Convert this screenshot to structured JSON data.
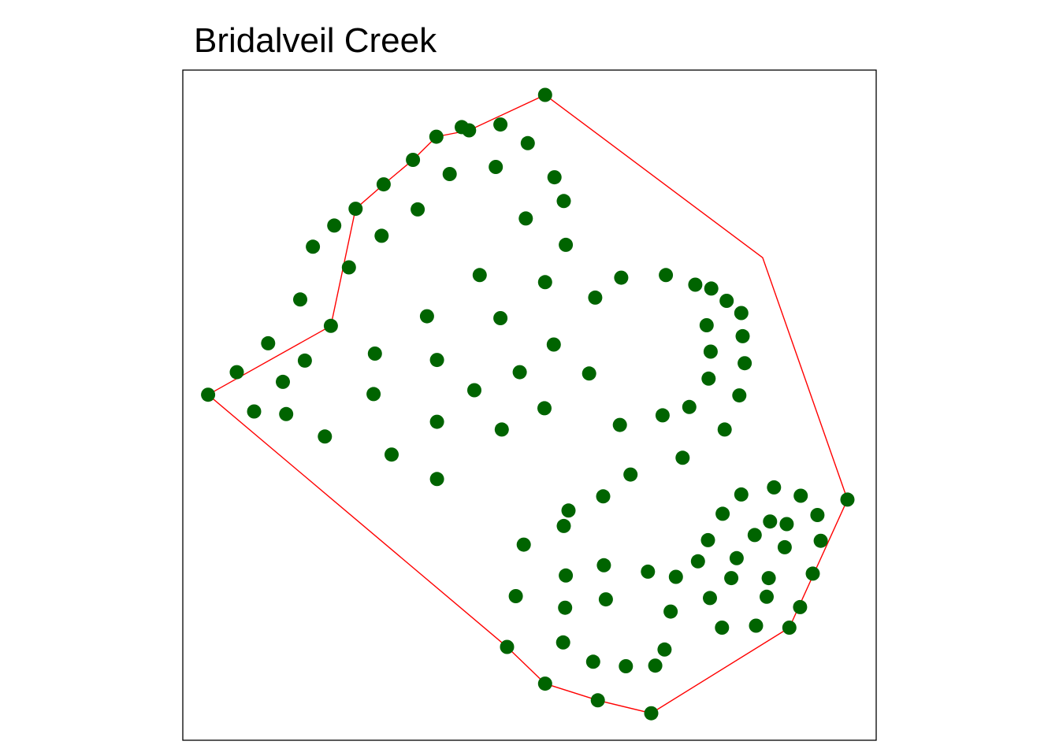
{
  "chart_data": {
    "type": "scatter",
    "title": "Bridalveil Creek",
    "xlabel": "",
    "ylabel": "",
    "xlim": [
      0,
      100
    ],
    "ylim": [
      0,
      100
    ],
    "grid": false,
    "axes_visible": false,
    "colors": {
      "points": "#006400",
      "hull": "#ff0000",
      "frame": "#000000"
    },
    "points": [
      [
        52.4,
        98.1
      ],
      [
        39.9,
        93.1
      ],
      [
        45.7,
        93.5
      ],
      [
        41.0,
        92.6
      ],
      [
        36.1,
        91.6
      ],
      [
        49.8,
        90.6
      ],
      [
        32.6,
        88.0
      ],
      [
        45.0,
        86.9
      ],
      [
        38.1,
        85.8
      ],
      [
        53.8,
        85.3
      ],
      [
        28.2,
        84.2
      ],
      [
        55.2,
        81.6
      ],
      [
        24.0,
        80.4
      ],
      [
        33.3,
        80.3
      ],
      [
        49.5,
        78.9
      ],
      [
        20.8,
        77.8
      ],
      [
        27.9,
        76.2
      ],
      [
        55.5,
        74.8
      ],
      [
        17.6,
        74.5
      ],
      [
        23.0,
        71.3
      ],
      [
        42.6,
        70.1
      ],
      [
        70.5,
        70.1
      ],
      [
        52.4,
        69.0
      ],
      [
        63.8,
        69.7
      ],
      [
        74.9,
        68.6
      ],
      [
        77.3,
        68.0
      ],
      [
        59.9,
        66.6
      ],
      [
        15.7,
        66.3
      ],
      [
        79.6,
        66.1
      ],
      [
        81.8,
        64.2
      ],
      [
        34.7,
        63.7
      ],
      [
        45.7,
        63.4
      ],
      [
        20.3,
        62.2
      ],
      [
        76.6,
        62.3
      ],
      [
        82.0,
        60.6
      ],
      [
        10.9,
        59.5
      ],
      [
        53.7,
        59.3
      ],
      [
        26.9,
        57.9
      ],
      [
        77.2,
        58.2
      ],
      [
        16.4,
        56.8
      ],
      [
        36.2,
        56.9
      ],
      [
        82.3,
        56.4
      ],
      [
        6.2,
        55.0
      ],
      [
        48.6,
        55.0
      ],
      [
        59.0,
        54.8
      ],
      [
        76.9,
        54.0
      ],
      [
        13.1,
        53.5
      ],
      [
        41.8,
        52.2
      ],
      [
        26.7,
        51.6
      ],
      [
        1.9,
        51.5
      ],
      [
        81.5,
        51.4
      ],
      [
        52.3,
        49.4
      ],
      [
        74.0,
        49.6
      ],
      [
        8.8,
        48.9
      ],
      [
        13.6,
        48.5
      ],
      [
        70.0,
        48.3
      ],
      [
        36.2,
        47.3
      ],
      [
        63.6,
        46.8
      ],
      [
        79.3,
        46.1
      ],
      [
        45.9,
        46.1
      ],
      [
        19.4,
        45.0
      ],
      [
        29.4,
        42.2
      ],
      [
        73.0,
        41.7
      ],
      [
        65.2,
        39.1
      ],
      [
        36.2,
        38.4
      ],
      [
        61.1,
        35.7
      ],
      [
        86.7,
        37.1
      ],
      [
        81.8,
        36.0
      ],
      [
        90.7,
        35.8
      ],
      [
        55.9,
        33.5
      ],
      [
        97.7,
        35.2
      ],
      [
        79.0,
        33.0
      ],
      [
        93.2,
        32.8
      ],
      [
        86.1,
        31.8
      ],
      [
        88.6,
        31.4
      ],
      [
        55.2,
        31.1
      ],
      [
        83.8,
        29.7
      ],
      [
        76.8,
        28.9
      ],
      [
        93.7,
        28.8
      ],
      [
        88.3,
        27.8
      ],
      [
        49.2,
        28.2
      ],
      [
        81.1,
        26.1
      ],
      [
        75.3,
        25.6
      ],
      [
        61.2,
        25.0
      ],
      [
        67.8,
        24.0
      ],
      [
        92.5,
        23.7
      ],
      [
        55.5,
        23.4
      ],
      [
        72.0,
        23.2
      ],
      [
        80.3,
        23.0
      ],
      [
        85.9,
        23.0
      ],
      [
        48.0,
        20.2
      ],
      [
        77.1,
        19.9
      ],
      [
        85.6,
        20.1
      ],
      [
        61.5,
        19.7
      ],
      [
        55.4,
        18.4
      ],
      [
        71.2,
        17.8
      ],
      [
        90.6,
        18.5
      ],
      [
        78.9,
        15.3
      ],
      [
        84.0,
        15.6
      ],
      [
        89.0,
        15.3
      ],
      [
        46.7,
        12.3
      ],
      [
        70.3,
        11.9
      ],
      [
        55.1,
        13.0
      ],
      [
        59.6,
        10.0
      ],
      [
        64.5,
        9.3
      ],
      [
        68.9,
        9.4
      ],
      [
        52.4,
        6.6
      ],
      [
        60.3,
        4.0
      ],
      [
        68.3,
        2.0
      ]
    ],
    "hull": [
      [
        52.4,
        98.1
      ],
      [
        85.0,
        72.8
      ],
      [
        97.7,
        35.2
      ],
      [
        89.0,
        15.3
      ],
      [
        68.3,
        2.0
      ],
      [
        60.3,
        4.0
      ],
      [
        52.4,
        6.6
      ],
      [
        46.7,
        12.3
      ],
      [
        1.9,
        51.5
      ],
      [
        20.3,
        62.2
      ],
      [
        24.0,
        80.4
      ],
      [
        28.2,
        84.2
      ],
      [
        32.6,
        88.0
      ],
      [
        36.1,
        91.6
      ],
      [
        41.0,
        92.6
      ],
      [
        52.4,
        98.1
      ]
    ]
  }
}
